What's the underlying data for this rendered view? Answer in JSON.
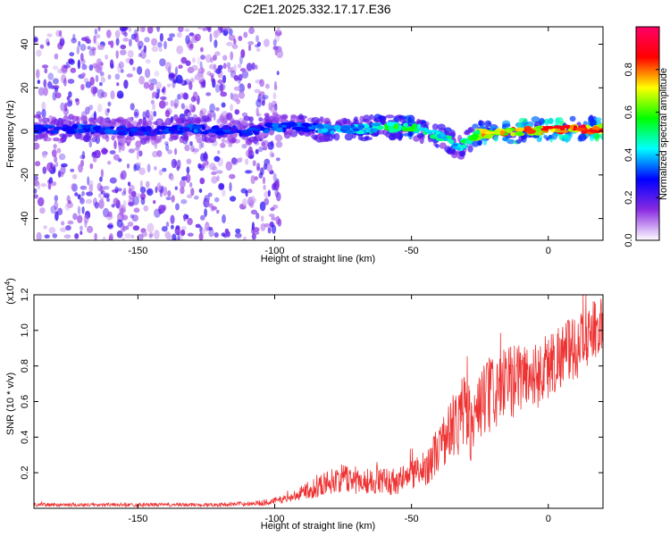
{
  "title": "C2E1.2025.332.17.17.E36",
  "chart_data": [
    {
      "type": "heatmap",
      "xlabel": "Height of straight line (km)",
      "ylabel": "Frequency (Hz)",
      "xlim": [
        -188,
        20
      ],
      "ylim": [
        -50,
        48
      ],
      "xticks": [
        -150,
        -100,
        -50,
        0
      ],
      "xtick_labels": [
        "-150",
        "-100",
        "-50",
        "0"
      ],
      "yticks": [
        -40,
        -20,
        0,
        20,
        40
      ],
      "ytick_labels": [
        "-40",
        "-20",
        "0",
        "20",
        "40"
      ],
      "colorbar": {
        "label": "Normalized spectral amplitude",
        "range": [
          0,
          1
        ],
        "ticks": [
          0.0,
          0.2,
          0.4,
          0.6,
          0.8
        ],
        "tick_labels": [
          "0.0",
          "0.2",
          "0.4",
          "0.6",
          "0.8"
        ],
        "colormap": [
          "#ffffff",
          "#8a2be2",
          "#0000ff",
          "#00ffff",
          "#00ff00",
          "#ffff00",
          "#ff0000",
          "#ff0066"
        ]
      },
      "ridge": {
        "x": [
          -188,
          -170,
          -150,
          -130,
          -110,
          -100,
          -90,
          -80,
          -70,
          -60,
          -50,
          -45,
          -40,
          -35,
          -32,
          -30,
          -25,
          -20,
          -10,
          0,
          10,
          20
        ],
        "frequency": [
          1,
          1,
          0,
          1,
          0,
          2,
          2,
          1,
          1,
          2,
          2,
          0,
          -2,
          -5,
          -8,
          -4,
          -1,
          -1,
          0,
          1,
          1,
          1
        ],
        "amplitude": [
          0.3,
          0.35,
          0.3,
          0.35,
          0.3,
          0.35,
          0.35,
          0.4,
          0.45,
          0.55,
          0.6,
          0.5,
          0.5,
          0.5,
          0.45,
          0.55,
          0.75,
          0.8,
          0.85,
          0.85,
          0.9,
          0.9
        ]
      },
      "noise_x_range": [
        -188,
        -98
      ],
      "noise_amplitude": 0.15
    },
    {
      "type": "line",
      "xlabel": "Height of straight line (km)",
      "ylabel": "SNR (10 * v/v)",
      "multiplier_label": "(x10",
      "multiplier_exp": "4",
      "multiplier_close": ")",
      "xlim": [
        -188,
        20
      ],
      "ylim": [
        0,
        1.2
      ],
      "xticks": [
        -150,
        -100,
        -50,
        0
      ],
      "xtick_labels": [
        "-150",
        "-100",
        "-50",
        "0"
      ],
      "yticks": [
        0.2,
        0.4,
        0.6,
        0.8,
        1.0,
        1.2
      ],
      "ytick_labels": [
        "0.2",
        "0.4",
        "0.6",
        "0.8",
        "1.0",
        "1.2"
      ],
      "series": [
        {
          "color": "#ee3333",
          "envelope_x": [
            -188,
            -170,
            -150,
            -120,
            -105,
            -95,
            -90,
            -85,
            -80,
            -75,
            -70,
            -60,
            -55,
            -50,
            -45,
            -40,
            -35,
            -30,
            -28,
            -25,
            -20,
            -15,
            -10,
            -5,
            0,
            5,
            10,
            15,
            20
          ],
          "envelope_base": [
            0.01,
            0.01,
            0.01,
            0.01,
            0.015,
            0.03,
            0.05,
            0.06,
            0.08,
            0.09,
            0.08,
            0.08,
            0.07,
            0.1,
            0.12,
            0.2,
            0.28,
            0.3,
            0.25,
            0.35,
            0.42,
            0.48,
            0.55,
            0.55,
            0.6,
            0.68,
            0.72,
            0.8,
            0.9
          ],
          "envelope_amp": [
            0.02,
            0.02,
            0.02,
            0.02,
            0.03,
            0.05,
            0.08,
            0.12,
            0.14,
            0.16,
            0.15,
            0.15,
            0.16,
            0.18,
            0.2,
            0.28,
            0.35,
            0.5,
            0.4,
            0.45,
            0.45,
            0.42,
            0.4,
            0.38,
            0.4,
            0.38,
            0.35,
            0.35,
            0.3
          ]
        }
      ]
    }
  ]
}
